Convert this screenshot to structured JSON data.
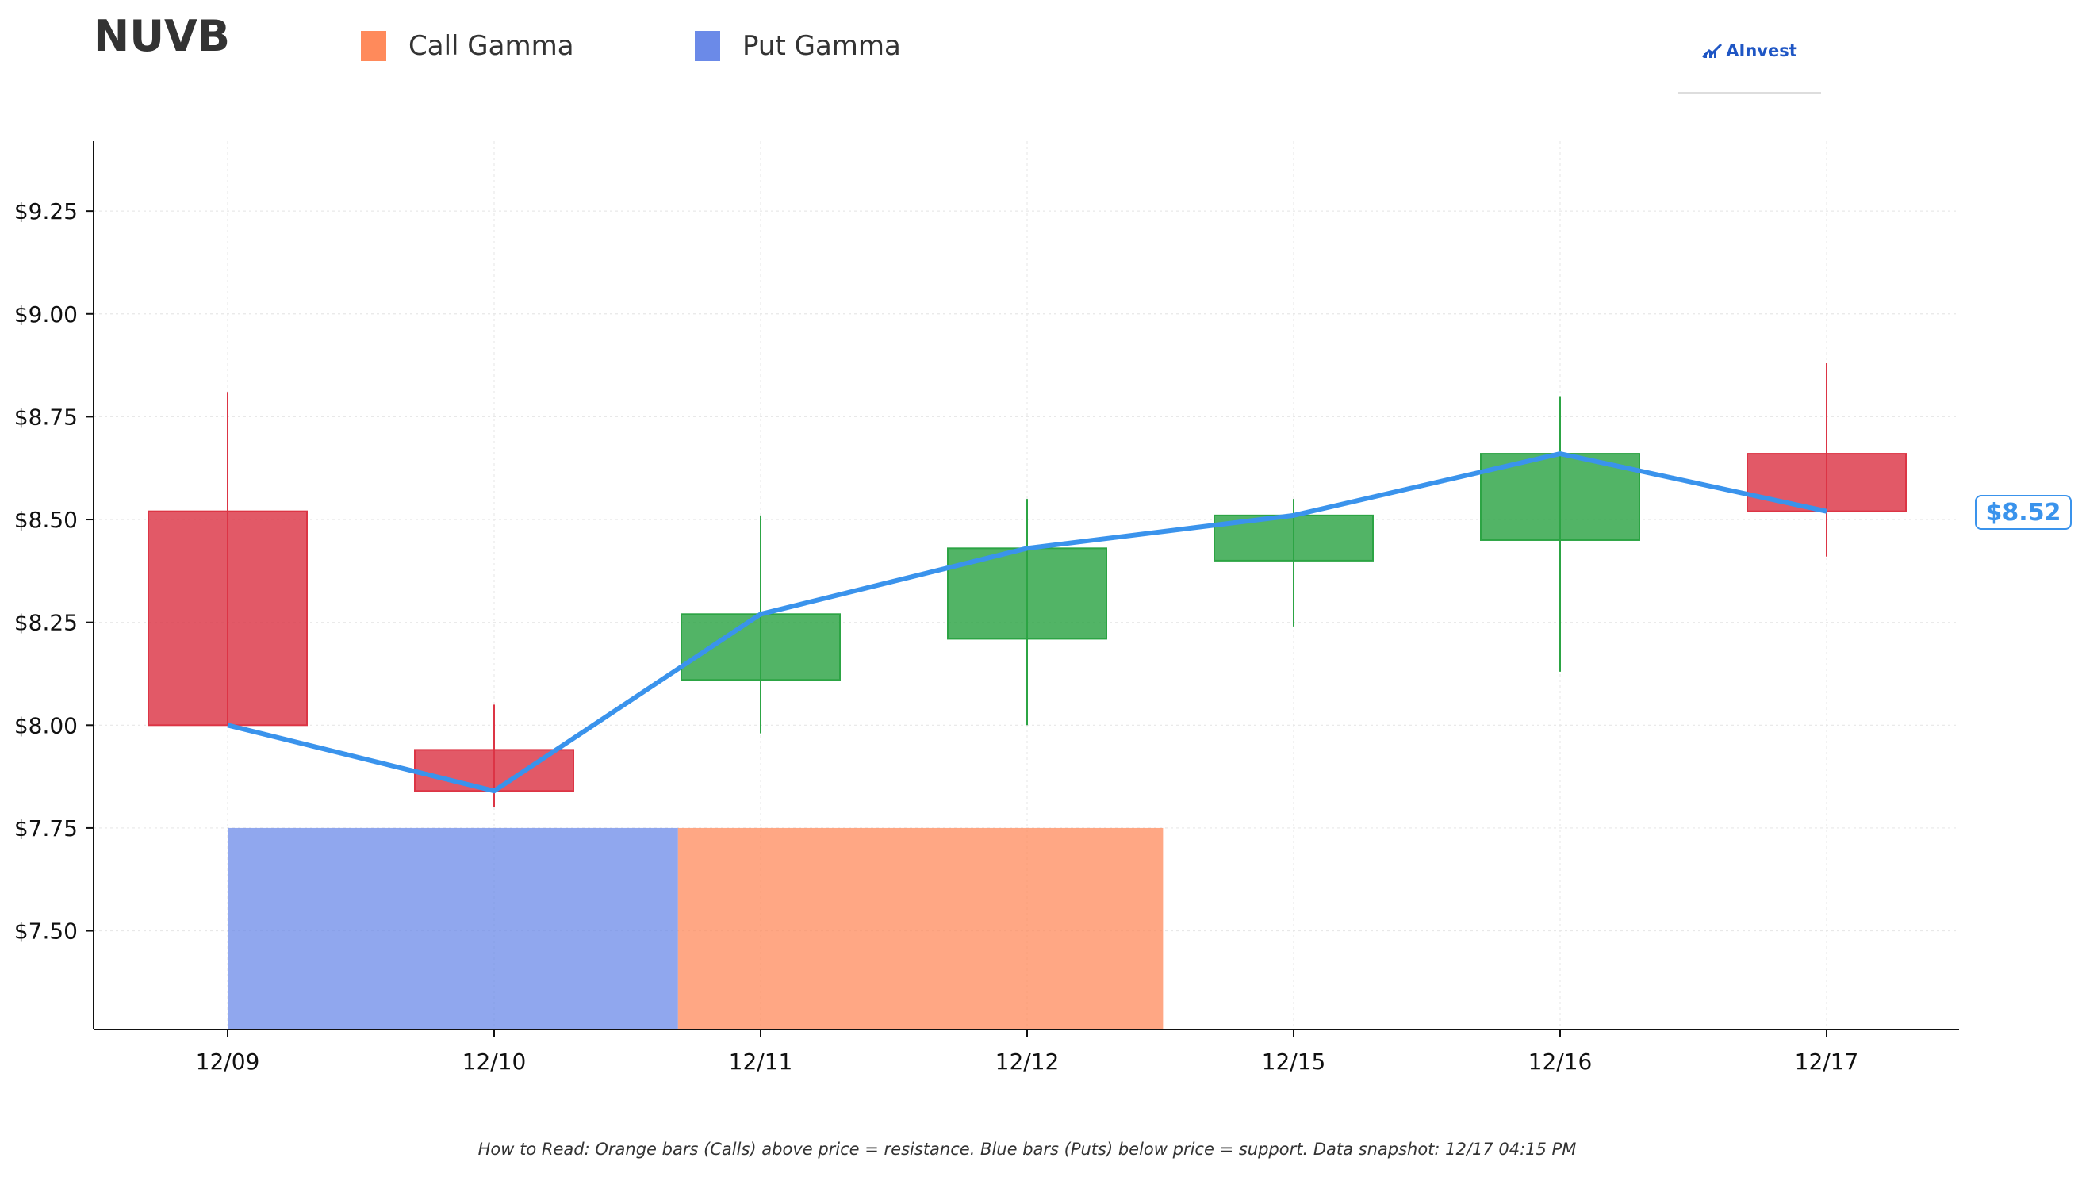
{
  "header": {
    "ticker": "NUVB",
    "brand": "AInvest"
  },
  "legend": [
    {
      "label": "Call Gamma",
      "color": "#ff8a5b"
    },
    {
      "label": "Put Gamma",
      "color": "#6b8ae8"
    }
  ],
  "footnote": "How to Read: Orange bars (Calls) above price = resistance. Blue bars (Puts) below price = support. Data snapshot: 12/17 04:15 PM",
  "price_label": "$8.52",
  "colors": {
    "up": "#2ca444",
    "down": "#dc3545",
    "close_line": "#3a93ec",
    "call": "#ff8a5b",
    "put": "#6b8ae8"
  },
  "chart_data": {
    "type": "candlestick",
    "categories": [
      "12/09",
      "12/10",
      "12/11",
      "12/12",
      "12/15",
      "12/16",
      "12/17"
    ],
    "candles": [
      {
        "date": "12/09",
        "open": 8.52,
        "high": 8.81,
        "low": 8.0,
        "close": 8.0
      },
      {
        "date": "12/10",
        "open": 7.94,
        "high": 8.05,
        "low": 7.8,
        "close": 7.84
      },
      {
        "date": "12/11",
        "open": 8.11,
        "high": 8.51,
        "low": 7.98,
        "close": 8.27
      },
      {
        "date": "12/12",
        "open": 8.21,
        "high": 8.55,
        "low": 8.0,
        "close": 8.43
      },
      {
        "date": "12/15",
        "open": 8.4,
        "high": 8.55,
        "low": 8.24,
        "close": 8.51
      },
      {
        "date": "12/16",
        "open": 8.45,
        "high": 8.8,
        "low": 8.13,
        "close": 8.66
      },
      {
        "date": "12/17",
        "open": 8.66,
        "high": 8.88,
        "low": 8.41,
        "close": 8.52
      }
    ],
    "close_line": [
      8.0,
      7.84,
      8.27,
      8.43,
      8.51,
      8.66,
      8.52
    ],
    "gamma_bars": [
      {
        "type": "Put Gamma",
        "strike": 7.5,
        "x_from": 0,
        "x_to": 1.69
      },
      {
        "type": "Call Gamma",
        "strike": 7.5,
        "x_from": 1.69,
        "x_to": 3.51
      }
    ],
    "y_ticks": [
      "$7.50",
      "$7.75",
      "$8.00",
      "$8.25",
      "$8.50",
      "$8.75",
      "$9.00",
      "$9.25"
    ],
    "y_tick_values": [
      7.5,
      7.75,
      8.0,
      8.25,
      8.5,
      8.75,
      9.0,
      9.25
    ],
    "ylim": [
      7.26,
      9.42
    ],
    "xlabel": "",
    "ylabel": "",
    "grid": true
  }
}
